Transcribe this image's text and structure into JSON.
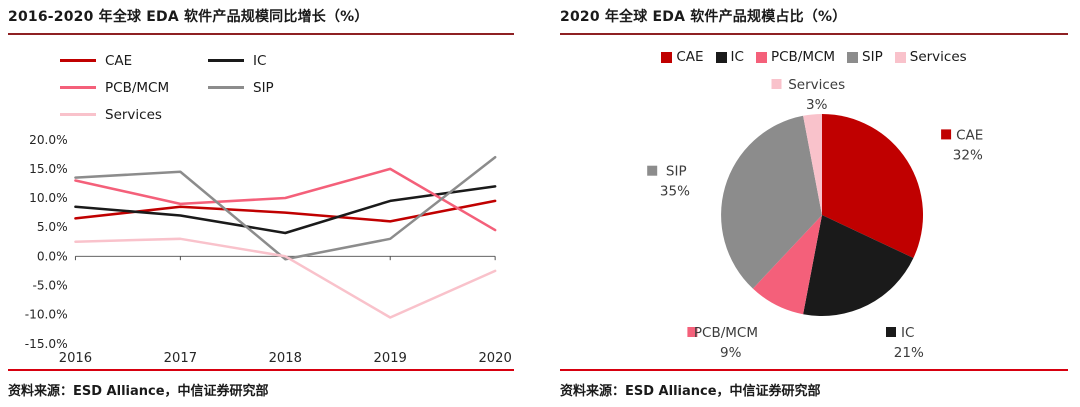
{
  "palette": {
    "title_rule": "#8e2023",
    "footer_rule": "#d7000f",
    "axis_text": "#262626"
  },
  "panels": [
    {
      "title": "2016-2020 年全球 EDA 软件产品规模同比增长（%）",
      "source": "资料来源：ESD Alliance，中信证券研究部"
    },
    {
      "title": "2020 年全球 EDA 软件产品规模占比（%）",
      "source": "资料来源：ESD Alliance，中信证券研究部"
    }
  ],
  "chart_data": [
    {
      "type": "line",
      "title": "2016-2020 年全球 EDA 软件产品规模同比增长（%）",
      "categories": [
        "2016",
        "2017",
        "2018",
        "2019",
        "2020"
      ],
      "series": [
        {
          "name": "CAE",
          "color": "#c00000",
          "values": [
            6.5,
            8.5,
            7.5,
            6.0,
            9.5
          ]
        },
        {
          "name": "IC",
          "color": "#1a1a1a",
          "values": [
            8.5,
            7.0,
            4.0,
            9.5,
            12.0
          ]
        },
        {
          "name": "PCB/MCM",
          "color": "#f4607a",
          "values": [
            13.0,
            9.0,
            10.0,
            15.0,
            4.5
          ]
        },
        {
          "name": "SIP",
          "color": "#8c8c8c",
          "values": [
            13.5,
            14.5,
            -0.5,
            3.0,
            17.0
          ]
        },
        {
          "name": "Services",
          "color": "#f9c2cb",
          "values": [
            2.5,
            3.0,
            0.0,
            -10.5,
            -2.5
          ]
        }
      ],
      "xlabel": "",
      "ylabel": "",
      "ylim": [
        -15,
        20
      ],
      "ytick_step": 5,
      "ytick_labels": [
        "20.0%",
        "15.0%",
        "10.0%",
        "5.0%",
        "0.0%",
        "-5.0%",
        "-10.0%",
        "-15.0%"
      ],
      "legend_position": "top",
      "grid": false
    },
    {
      "type": "pie",
      "title": "2020 年全球 EDA 软件产品规模占比（%）",
      "slices": [
        {
          "name": "CAE",
          "value": 32,
          "percent_label": "32%",
          "color": "#c00000"
        },
        {
          "name": "IC",
          "value": 21,
          "percent_label": "21%",
          "color": "#1a1a1a"
        },
        {
          "name": "PCB/MCM",
          "value": 9,
          "percent_label": "9%",
          "color": "#f4607a"
        },
        {
          "name": "SIP",
          "value": 35,
          "percent_label": "35%",
          "color": "#8c8c8c"
        },
        {
          "name": "Services",
          "value": 3,
          "percent_label": "3%",
          "color": "#f9c2cb"
        }
      ],
      "legend_position": "top",
      "start_angle_deg": -90,
      "direction": "clockwise"
    }
  ]
}
